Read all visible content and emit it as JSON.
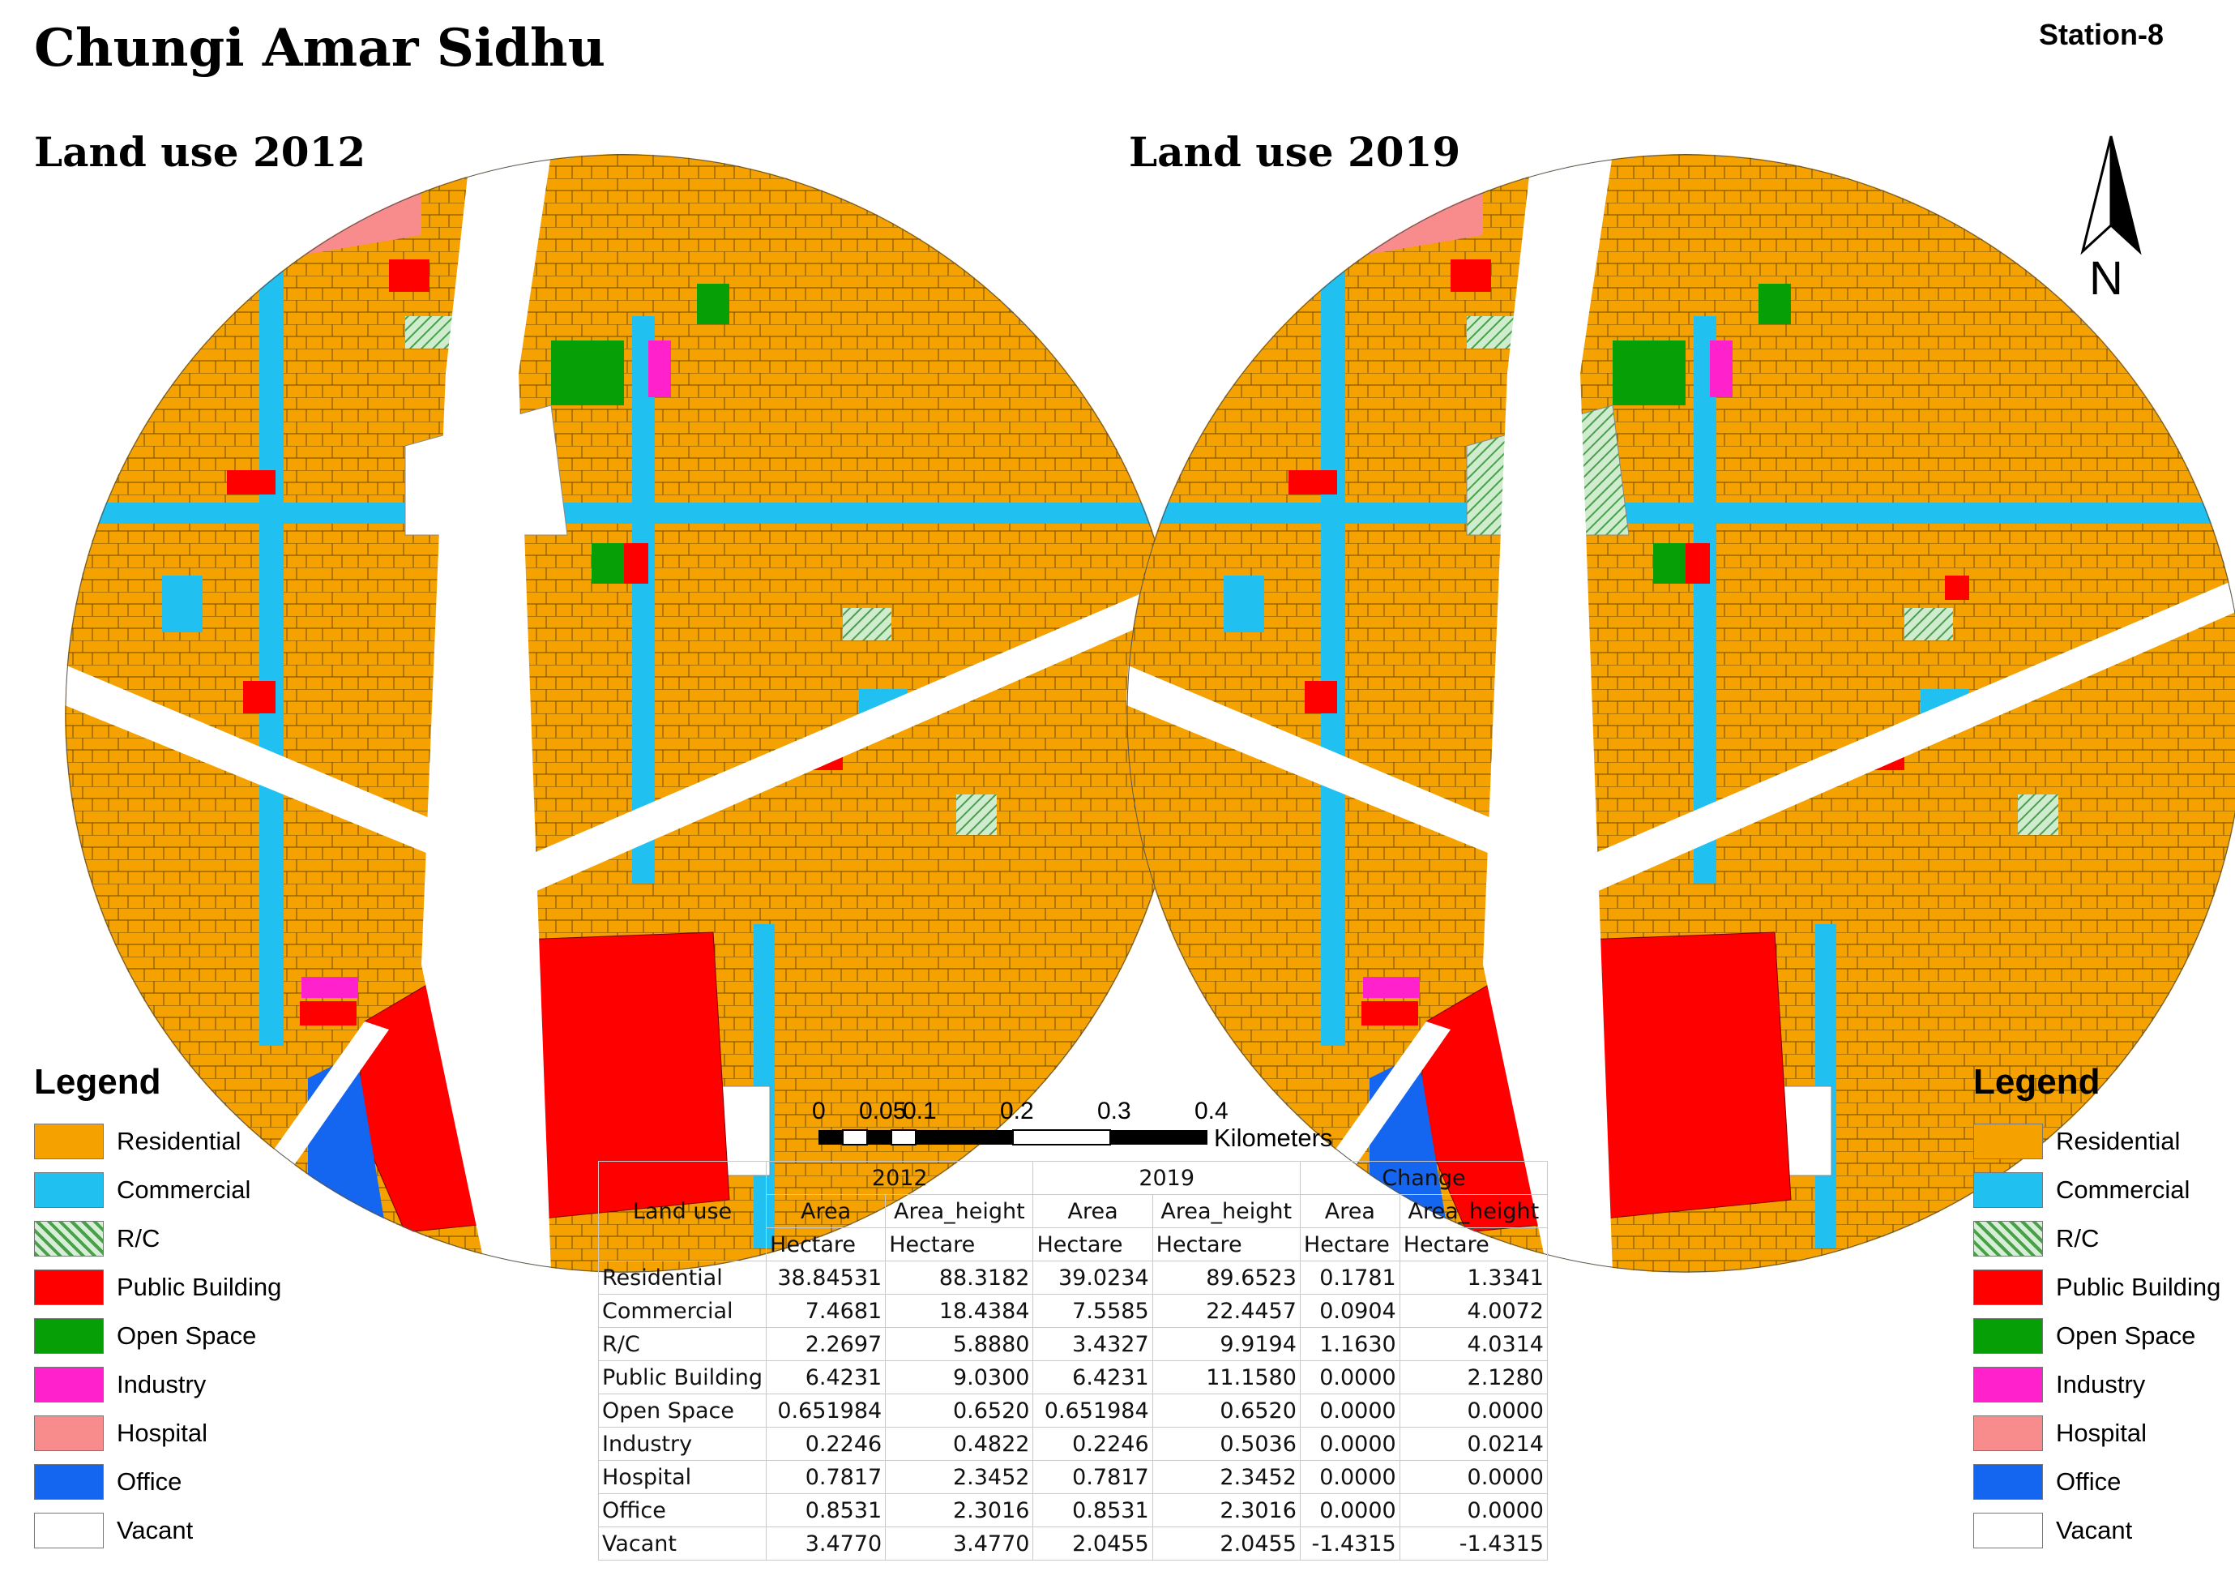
{
  "title": "Chungi Amar Sidhu",
  "station": "Station-8",
  "maps": [
    {
      "title": "Land use 2012"
    },
    {
      "title": "Land use 2019"
    }
  ],
  "north_label": "N",
  "scale_bar": {
    "ticks": [
      "0",
      "0.05",
      "0.1",
      "0.2",
      "0.3",
      "0.4"
    ],
    "unit": "Kilometers"
  },
  "legend": {
    "title": "Legend",
    "items": [
      {
        "label": "Residential",
        "color": "#f5a100"
      },
      {
        "label": "Commercial",
        "color": "#20c0f0"
      },
      {
        "label": "R/C",
        "color": "#a6d9a6",
        "pattern": "hatch"
      },
      {
        "label": "Public Building",
        "color": "#ff0000"
      },
      {
        "label": "Open Space",
        "color": "#06a006"
      },
      {
        "label": "Industry",
        "color": "#ff22cc"
      },
      {
        "label": "Hospital",
        "color": "#f88b8b"
      },
      {
        "label": "Office",
        "color": "#1466f0"
      },
      {
        "label": "Vacant",
        "color": "#ffffff"
      }
    ]
  },
  "table": {
    "header": {
      "land_use": "Land use",
      "y2012": "2012",
      "y2019": "2019",
      "change": "Change",
      "area": "Area",
      "area_height": "Area_height",
      "unit": "Hectare"
    },
    "rows": [
      {
        "name": "Residential",
        "a2012": "38.84531",
        "h2012": "88.3182",
        "a2019": "39.0234",
        "h2019": "89.6523",
        "ca": "0.1781",
        "ch": "1.3341"
      },
      {
        "name": "Commercial",
        "a2012": "7.4681",
        "h2012": "18.4384",
        "a2019": "7.5585",
        "h2019": "22.4457",
        "ca": "0.0904",
        "ch": "4.0072"
      },
      {
        "name": "R/C",
        "a2012": "2.2697",
        "h2012": "5.8880",
        "a2019": "3.4327",
        "h2019": "9.9194",
        "ca": "1.1630",
        "ch": "4.0314"
      },
      {
        "name": "Public Building",
        "a2012": "6.4231",
        "h2012": "9.0300",
        "a2019": "6.4231",
        "h2019": "11.1580",
        "ca": "0.0000",
        "ch": "2.1280"
      },
      {
        "name": "Open Space",
        "a2012": "0.651984",
        "h2012": "0.6520",
        "a2019": "0.651984",
        "h2019": "0.6520",
        "ca": "0.0000",
        "ch": "0.0000"
      },
      {
        "name": "Industry",
        "a2012": "0.2246",
        "h2012": "0.4822",
        "a2019": "0.2246",
        "h2019": "0.5036",
        "ca": "0.0000",
        "ch": "0.0214"
      },
      {
        "name": "Hospital",
        "a2012": "0.7817",
        "h2012": "2.3452",
        "a2019": "0.7817",
        "h2019": "2.3452",
        "ca": "0.0000",
        "ch": "0.0000"
      },
      {
        "name": "Office",
        "a2012": "0.8531",
        "h2012": "2.3016",
        "a2019": "0.8531",
        "h2019": "2.3016",
        "ca": "0.0000",
        "ch": "0.0000"
      },
      {
        "name": "Vacant",
        "a2012": "3.4770",
        "h2012": "3.4770",
        "a2019": "2.0455",
        "h2019": "2.0455",
        "ca": "-1.4315",
        "ch": "-1.4315"
      }
    ]
  }
}
